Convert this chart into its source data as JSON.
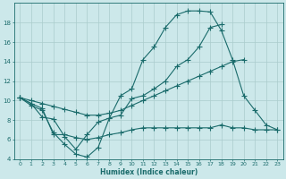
{
  "xlabel": "Humidex (Indice chaleur)",
  "bg_color": "#cce8ea",
  "grid_color": "#aacccc",
  "line_color": "#1a6b6b",
  "xlim": [
    -0.5,
    23.5
  ],
  "ylim": [
    4,
    20
  ],
  "yticks": [
    4,
    6,
    8,
    10,
    12,
    14,
    16,
    18
  ],
  "xticks": [
    0,
    1,
    2,
    3,
    4,
    5,
    6,
    7,
    8,
    9,
    10,
    11,
    12,
    13,
    14,
    15,
    16,
    17,
    18,
    19,
    20,
    21,
    22,
    23
  ],
  "line1_x": [
    0,
    1,
    2,
    3,
    4,
    5,
    6,
    7,
    8,
    9,
    10,
    11,
    12,
    13,
    14,
    15,
    16,
    17,
    18,
    19,
    20,
    21,
    22,
    23
  ],
  "line1_y": [
    10.3,
    9.7,
    8.3,
    8.1,
    6.3,
    5.0,
    6.5,
    7.8,
    8.2,
    10.5,
    11.2,
    14.2,
    15.5,
    17.5,
    18.8,
    19.2,
    19.2,
    19.1,
    17.2,
    14.2,
    10.5,
    9.0,
    7.5,
    7.0
  ],
  "line2_x": [
    0,
    1,
    2,
    3,
    4,
    5,
    6,
    7,
    8,
    9,
    10,
    11,
    12,
    13,
    14,
    15,
    16,
    17,
    18,
    19,
    20,
    21,
    22,
    23
  ],
  "line2_y": [
    10.3,
    9.5,
    9.0,
    6.7,
    5.5,
    4.5,
    4.2,
    5.2,
    8.2,
    8.5,
    10.2,
    10.5,
    11.2,
    12.0,
    13.5,
    14.2,
    15.5,
    17.5,
    17.8,
    null,
    null,
    null,
    null,
    null
  ],
  "line3_x": [
    0,
    1,
    2,
    3,
    4,
    5,
    6,
    7,
    8,
    9,
    10,
    11,
    12,
    13,
    14,
    15,
    16,
    17,
    18,
    19,
    20,
    21,
    22,
    23
  ],
  "line3_y": [
    10.3,
    10.0,
    9.7,
    9.4,
    9.1,
    8.8,
    8.5,
    8.5,
    8.7,
    9.0,
    9.5,
    10.0,
    10.5,
    11.0,
    11.5,
    12.0,
    12.5,
    13.0,
    13.5,
    14.0,
    14.2,
    null,
    null,
    null
  ],
  "line4_x": [
    0,
    1,
    2,
    3,
    4,
    5,
    6,
    7,
    8,
    9,
    10,
    11,
    12,
    13,
    14,
    15,
    16,
    17,
    18,
    19,
    20,
    21,
    22,
    23
  ],
  "line4_y": [
    10.3,
    9.7,
    9.2,
    6.5,
    6.5,
    6.2,
    6.0,
    6.2,
    6.5,
    6.7,
    7.0,
    7.2,
    7.2,
    7.2,
    7.2,
    7.2,
    7.2,
    7.2,
    7.5,
    7.2,
    7.2,
    7.0,
    7.0,
    7.0
  ]
}
